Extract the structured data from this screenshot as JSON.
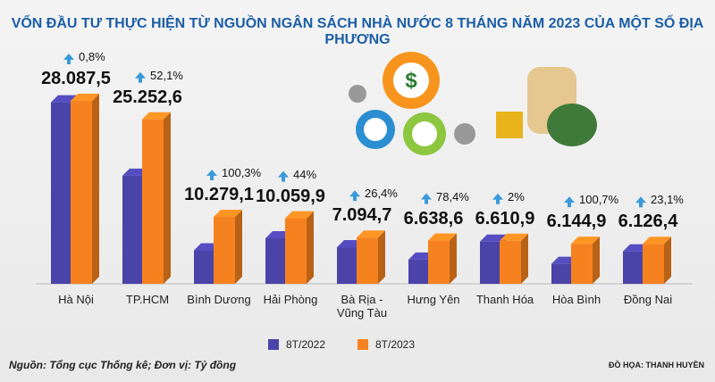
{
  "chart_data": {
    "type": "bar",
    "title": "VỐN ĐẦU TƯ THỰC HIỆN TỪ NGUỒN NGÂN SÁCH NHÀ NƯỚC 8 THÁNG NĂM 2023 CỦA MỘT SỐ ĐỊA PHƯƠNG",
    "categories": [
      "Hà Nội",
      "TP.HCM",
      "Bình Dương",
      "Hải Phòng",
      "Bà Rịa - Vũng Tàu",
      "Hưng Yên",
      "Thanh Hóa",
      "Hòa Bình",
      "Đồng Nai"
    ],
    "series": [
      {
        "name": "8T/2022",
        "color": "#4a43a8",
        "values": [
          27865,
          16602,
          5132,
          6986,
          5613,
          3721,
          6481,
          3062,
          4977
        ]
      },
      {
        "name": "8T/2023",
        "color": "#f5821f",
        "values": [
          28087.5,
          25252.6,
          10279.1,
          10059.9,
          7094.7,
          6638.6,
          6610.9,
          6144.9,
          6126.4
        ],
        "value_labels": [
          "28.087,5",
          "25.252,6",
          "10.279,1",
          "10.059,9",
          "7.094,7",
          "6.638,6",
          "6.610,9",
          "6.144,9",
          "6.126,4"
        ]
      }
    ],
    "annotations": [
      "0,8%",
      "52,1%",
      "100,3%",
      "44%",
      "26,4%",
      "78,4%",
      "2%",
      "100,7%",
      "23,1%"
    ],
    "source": "Nguồn: Tổng cục Thống kê; Đơn vị: Tỷ đồng",
    "credit": "ĐỒ HỌA: THANH HUYỀN"
  }
}
